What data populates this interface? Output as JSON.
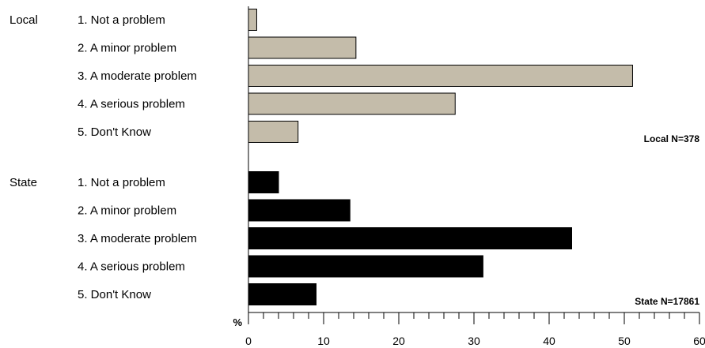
{
  "chart_data": {
    "type": "bar",
    "orientation": "horizontal",
    "x_unit_label": "%",
    "xlim": [
      0,
      60
    ],
    "x_ticks": [
      0,
      10,
      20,
      30,
      40,
      50,
      60
    ],
    "colors": {
      "Local": "#c4bcaa",
      "State": "#000000"
    },
    "groups": [
      {
        "name": "Local",
        "n_label": "Local N=378",
        "categories": [
          "1. Not a problem",
          "2. A minor problem",
          "3. A moderate problem",
          "4. A serious problem",
          "5. Don't Know"
        ],
        "values": [
          1.1,
          14.3,
          51.1,
          27.5,
          6.6
        ]
      },
      {
        "name": "State",
        "n_label": "State N=17861",
        "categories": [
          "1. Not a problem",
          "2. A minor problem",
          "3. A moderate problem",
          "4. A serious problem",
          "5. Don't Know"
        ],
        "values": [
          4.0,
          13.5,
          43.0,
          31.2,
          9.0
        ]
      }
    ]
  }
}
